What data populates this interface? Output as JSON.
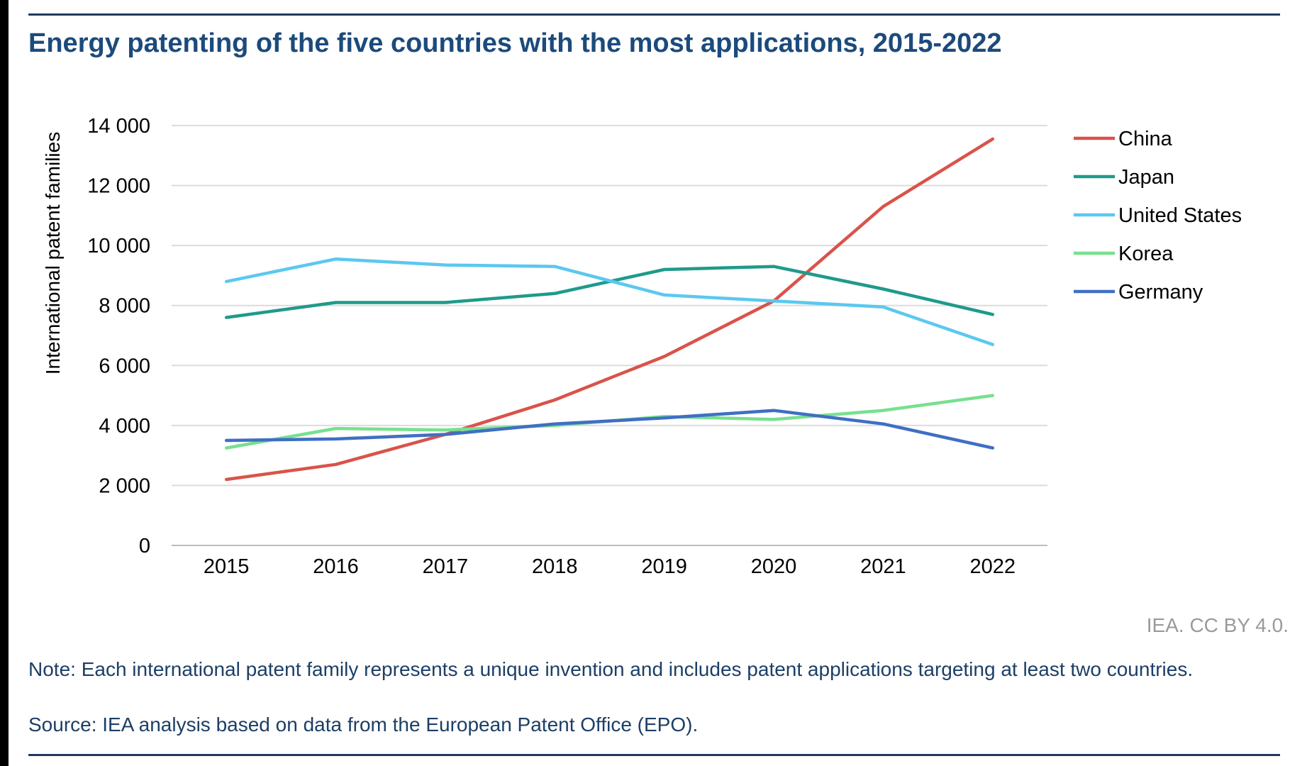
{
  "chart_data": {
    "type": "line",
    "title": "Energy patenting of the five countries with the most applications, 2015-2022",
    "xlabel": "",
    "ylabel": "International patent families",
    "ylim": [
      0,
      14000
    ],
    "yticks": [
      0,
      2000,
      4000,
      6000,
      8000,
      10000,
      12000,
      14000
    ],
    "ytick_labels": [
      "0",
      "2 000",
      "4 000",
      "6 000",
      "8 000",
      "10 000",
      "12 000",
      "14 000"
    ],
    "categories": [
      "2015",
      "2016",
      "2017",
      "2018",
      "2019",
      "2020",
      "2021",
      "2022"
    ],
    "grid": true,
    "legend_position": "right",
    "series": [
      {
        "name": "China",
        "color": "#d9534a",
        "values": [
          2200,
          2700,
          3700,
          4850,
          6300,
          8150,
          11300,
          13550
        ]
      },
      {
        "name": "Japan",
        "color": "#1f9a8a",
        "values": [
          7600,
          8100,
          8100,
          8400,
          9200,
          9300,
          8550,
          7700
        ]
      },
      {
        "name": "United States",
        "color": "#5bc8f0",
        "values": [
          8800,
          9550,
          9350,
          9300,
          8350,
          8150,
          7950,
          6700
        ]
      },
      {
        "name": "Korea",
        "color": "#78e08f",
        "values": [
          3250,
          3900,
          3850,
          4000,
          4300,
          4200,
          4500,
          5000
        ]
      },
      {
        "name": "Germany",
        "color": "#3f6fc4",
        "values": [
          3500,
          3550,
          3700,
          4050,
          4250,
          4500,
          4050,
          3250
        ]
      }
    ]
  },
  "footer": {
    "credit": "IEA. CC BY 4.0.",
    "note": "Note: Each international patent family represents a unique invention and includes patent applications targeting at least two countries.",
    "source": "Source: IEA analysis based on data from the European Patent Office (EPO)."
  }
}
